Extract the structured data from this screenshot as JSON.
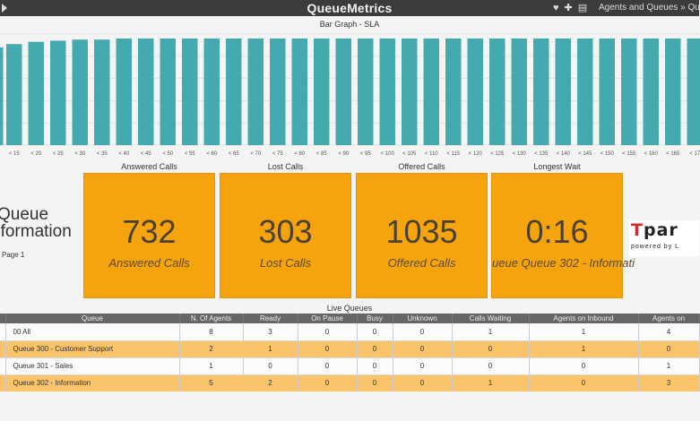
{
  "topbar": {
    "brand": "QueueMetrics",
    "icons": [
      "heart-icon",
      "plus-icon",
      "list-icon"
    ],
    "breadcrumb": "Agents and Queues » Qu"
  },
  "chart_data": {
    "type": "bar",
    "title": "Bar Graph - SLA",
    "categories": [
      "< 15",
      "< 20",
      "< 25",
      "< 30",
      "< 35",
      "< 40",
      "< 45",
      "< 50",
      "< 55",
      "< 60",
      "< 65",
      "< 70",
      "< 75",
      "< 80",
      "< 85",
      "< 90",
      "< 95",
      "< 100",
      "< 105",
      "< 110",
      "< 115",
      "< 120",
      "< 125",
      "< 130",
      "< 135",
      "< 140",
      "< 145",
      "< 150",
      "< 155",
      "< 160",
      "< 165",
      "< 17"
    ],
    "values": [
      91,
      93,
      94,
      95,
      95,
      96,
      96,
      96,
      96,
      96,
      96,
      96,
      96,
      96,
      96,
      96,
      96,
      96,
      96,
      96,
      96,
      96,
      96,
      96,
      96,
      96,
      96,
      96,
      96,
      96,
      96,
      96
    ],
    "partial_first_value": 88,
    "ylim": [
      0,
      100
    ],
    "grid": true,
    "color": "#45aab0"
  },
  "kpis": [
    {
      "label": "Answered Calls",
      "value": "732",
      "sub": "Answered Calls"
    },
    {
      "label": "Lost Calls",
      "value": "303",
      "sub": "Lost Calls"
    },
    {
      "label": "Offered Calls",
      "value": "1035",
      "sub": "Offered Calls"
    },
    {
      "label": "Longest Wait",
      "value": "0:16",
      "sub": "ueue Queue 302 - Informati"
    }
  ],
  "queue_info": {
    "line1": "Queue",
    "line2": "nformation",
    "page": "Page 1"
  },
  "logo": {
    "text_red": "T",
    "text": "par",
    "tagline": "powered by L"
  },
  "live_queues": {
    "title": "Live Queues",
    "columns": [
      "Queue",
      "N. Of Agents",
      "Ready",
      "On Pause",
      "Busy",
      "Unknown",
      "Calls Waiting",
      "Agents on Inbound",
      "Agents on"
    ],
    "rows": [
      [
        "00 All",
        "8",
        "3",
        "0",
        "0",
        "0",
        "1",
        "1",
        "4"
      ],
      [
        "Queue 300 - Customer Support",
        "2",
        "1",
        "0",
        "0",
        "0",
        "0",
        "1",
        "0"
      ],
      [
        "Queue 301 - Sales",
        "1",
        "0",
        "0",
        "0",
        "0",
        "0",
        "0",
        "1"
      ],
      [
        "Queue 302 - Information",
        "5",
        "2",
        "0",
        "0",
        "0",
        "1",
        "0",
        "3"
      ]
    ]
  },
  "colors": {
    "topbar": "#3c3c3c",
    "bar": "#45aab0",
    "kpi": "#f5a40d",
    "row_highlight": "#fbc46a"
  }
}
